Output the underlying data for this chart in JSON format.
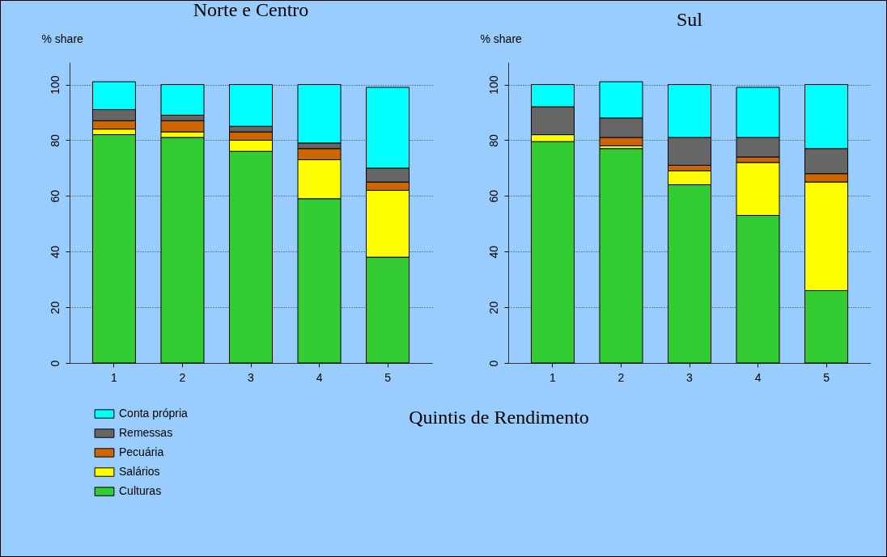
{
  "chart_data": [
    {
      "type": "bar",
      "title": "Norte e Centro",
      "ylabel": "% share",
      "xlabel": "Quintis de Rendimento",
      "categories": [
        "1",
        "2",
        "3",
        "4",
        "5"
      ],
      "stacked": true,
      "ylim": [
        0,
        108
      ],
      "yticks": [
        0,
        20,
        40,
        60,
        80,
        100
      ],
      "grid": "y",
      "legend": "bottom left",
      "series": [
        {
          "name": "Culturas",
          "color": "#33cc33",
          "values": [
            82,
            81,
            76,
            59,
            38
          ]
        },
        {
          "name": "Salários",
          "color": "#ffff00",
          "values": [
            2,
            2,
            4,
            14,
            24
          ]
        },
        {
          "name": "Pecuária",
          "color": "#cc6600",
          "values": [
            3,
            4,
            3,
            4,
            3
          ]
        },
        {
          "name": "Remessas",
          "color": "#666666",
          "values": [
            4,
            2,
            2,
            2,
            5
          ]
        },
        {
          "name": "Conta própria",
          "color": "#00ffff",
          "values": [
            10,
            11,
            15,
            21,
            29
          ]
        }
      ]
    },
    {
      "type": "bar",
      "title": "Sul",
      "ylabel": "% share",
      "categories": [
        "1",
        "2",
        "3",
        "4",
        "5"
      ],
      "stacked": true,
      "ylim": [
        0,
        108
      ],
      "yticks": [
        0,
        20,
        40,
        60,
        80,
        100
      ],
      "grid": "y",
      "series": [
        {
          "color": "#33cc33",
          "values": [
            79.5,
            77,
            64,
            53,
            26
          ]
        },
        {
          "color": "#ffff00",
          "values": [
            2.5,
            1,
            5,
            19,
            39
          ]
        },
        {
          "color": "#cc6600",
          "values": [
            0,
            3,
            2,
            2,
            3
          ]
        },
        {
          "color": "#666666",
          "values": [
            10,
            7,
            10,
            7,
            9
          ]
        },
        {
          "color": "#00ffff",
          "values": [
            8,
            13,
            19,
            18,
            23
          ]
        }
      ]
    }
  ]
}
